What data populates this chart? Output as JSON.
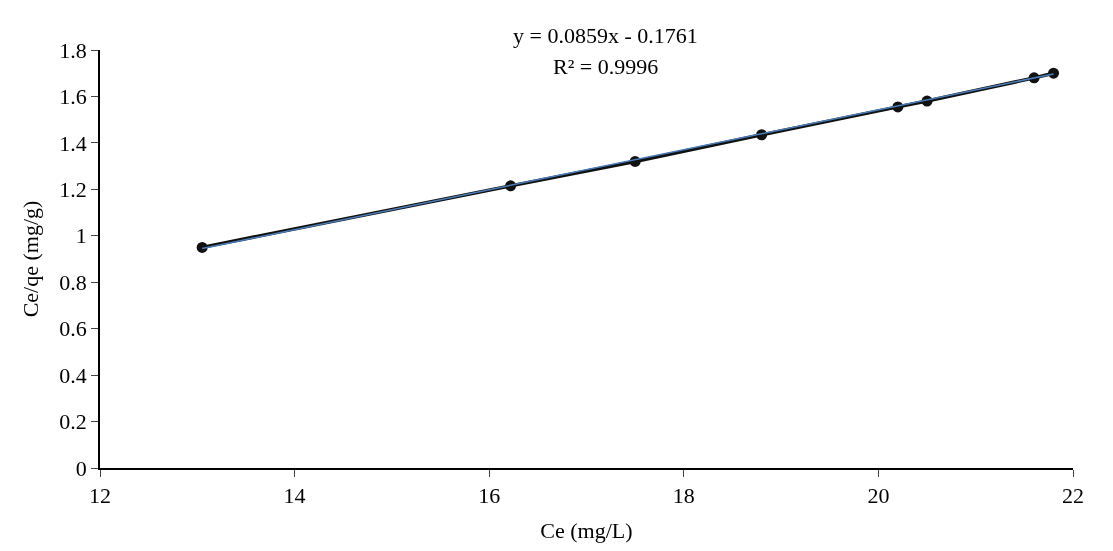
{
  "chart_data": {
    "type": "line",
    "xlabel": "Ce (mg/L)",
    "ylabel": "Ce/qe (mg/g)",
    "xlim": [
      12,
      22
    ],
    "xticks": [
      12,
      14,
      16,
      18,
      20,
      22
    ],
    "ylim": [
      0,
      1.8
    ],
    "yticks": [
      0,
      0.2,
      0.4,
      0.6,
      0.8,
      1,
      1.2,
      1.4,
      1.6,
      1.8
    ],
    "marker": "circle",
    "line_style": "solid",
    "series": [
      {
        "color": "#111111",
        "x": [
          13.05,
          16.22,
          17.5,
          18.8,
          20.2,
          20.5,
          21.6,
          21.8
        ],
        "values": [
          0.95,
          1.215,
          1.32,
          1.435,
          1.555,
          1.58,
          1.68,
          1.7
        ]
      },
      {
        "type": "line",
        "marker": "none",
        "color": "#4a7ebb",
        "x": [
          13.05,
          21.8
        ],
        "values": [
          0.945,
          1.697
        ]
      }
    ],
    "annotations": [
      "y = 0.0859x - 0.1761",
      "R² = 0.9996"
    ]
  }
}
